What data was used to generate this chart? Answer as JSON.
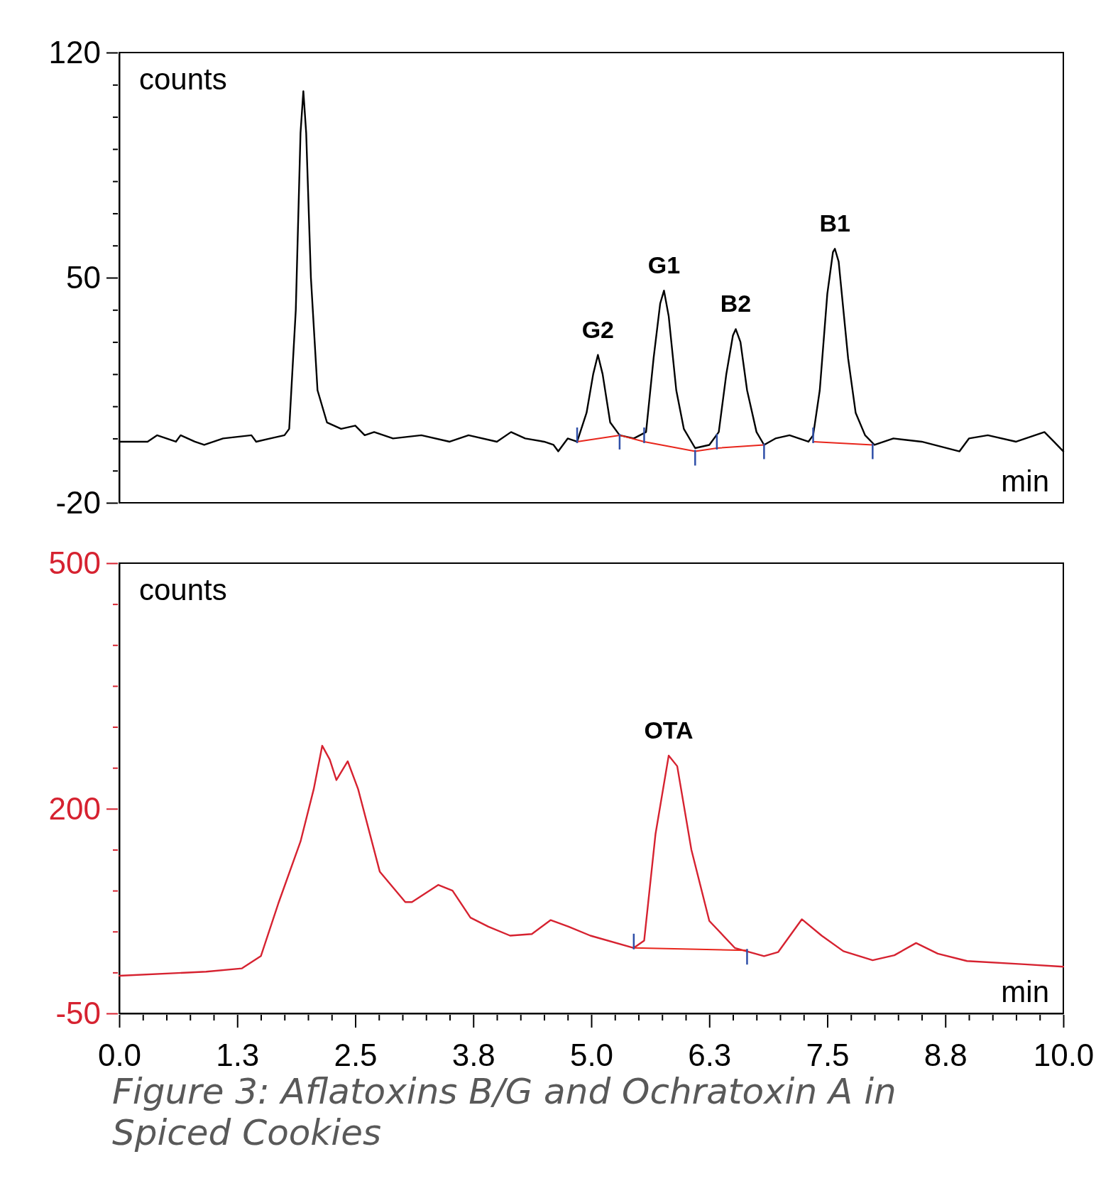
{
  "chart_data": [
    {
      "type": "line",
      "ylabel": "counts",
      "xlabel": "min",
      "xlim": [
        0,
        10
      ],
      "ylim": [
        -20,
        120
      ],
      "tick_labels": "y",
      "grid": false,
      "yticks": [
        -20,
        {
          "value": -10,
          "label": null
        },
        {
          "value": 0,
          "label": null
        },
        {
          "value": 10,
          "label": null
        },
        {
          "value": 20,
          "label": null
        },
        {
          "value": 30,
          "label": null
        },
        {
          "value": 40,
          "label": null
        },
        50,
        {
          "value": 60,
          "label": null
        },
        {
          "value": 70,
          "label": null
        },
        {
          "value": 80,
          "label": null
        },
        {
          "value": 90,
          "label": null
        },
        {
          "value": 100,
          "label": null
        },
        {
          "value": 110,
          "label": null
        },
        120
      ],
      "series": [
        {
          "color": "#000000",
          "x": [
            0,
            0.3,
            0.4,
            0.6,
            0.65,
            0.8,
            0.9,
            1.1,
            1.4,
            1.45,
            1.6,
            1.75,
            1.8,
            1.87,
            1.92,
            1.95,
            1.98,
            2.03,
            2.1,
            2.2,
            2.35,
            2.5,
            2.6,
            2.7,
            2.9,
            3.2,
            3.5,
            3.7,
            4.0,
            4.15,
            4.3,
            4.5,
            4.6,
            4.65,
            4.75,
            4.85,
            4.95,
            5.02,
            5.07,
            5.12,
            5.2,
            5.3,
            5.45,
            5.58,
            5.66,
            5.73,
            5.77,
            5.82,
            5.9,
            5.98,
            6.1,
            6.25,
            6.35,
            6.43,
            6.5,
            6.53,
            6.58,
            6.65,
            6.75,
            6.83,
            6.95,
            7.1,
            7.3,
            7.35,
            7.42,
            7.5,
            7.56,
            7.58,
            7.62,
            7.72,
            7.8,
            7.9,
            8.0,
            8.2,
            8.5,
            8.9,
            9.0,
            9.2,
            9.5,
            9.7,
            9.8,
            9.9,
            10
          ],
          "values": [
            -1,
            -1,
            1,
            -1,
            1,
            -1,
            -2,
            0,
            1,
            -1,
            0,
            1,
            3,
            40,
            95,
            108,
            95,
            50,
            15,
            5,
            3,
            4,
            1,
            2,
            0,
            1,
            -1,
            1,
            -1,
            2,
            0,
            -1,
            -2,
            -4,
            0,
            -1,
            8,
            20,
            26,
            20,
            5,
            1,
            0,
            2,
            25,
            42,
            46,
            38,
            15,
            3,
            -3,
            -2,
            2,
            20,
            32,
            34,
            30,
            15,
            2,
            -2,
            0,
            1,
            -1,
            1,
            15,
            45,
            58,
            59,
            55,
            25,
            8,
            1,
            -2,
            0,
            -1,
            -4,
            0,
            1,
            -1,
            1,
            2,
            -1,
            -4
          ]
        },
        {
          "color": "#e8261c",
          "x": [
            4.85,
            5.3,
            5.56,
            6.1,
            6.33,
            6.83,
            7.1,
            7.35,
            7.98
          ],
          "values": [
            -1,
            1,
            -1,
            -4,
            -3,
            -2,
            null,
            -1,
            -2
          ]
        }
      ],
      "annotations": [
        {
          "text": "G2",
          "x": 5.07,
          "y": 26
        },
        {
          "text": "G1",
          "x": 5.77,
          "y": 46
        },
        {
          "text": "B2",
          "x": 6.53,
          "y": 34
        },
        {
          "text": "B1",
          "x": 7.58,
          "y": 59
        }
      ]
    },
    {
      "type": "line",
      "ylabel": "counts",
      "xlabel": "min",
      "xlim": [
        0,
        10
      ],
      "ylim": [
        -50,
        500
      ],
      "grid": false,
      "yticks": [
        -50,
        {
          "value": 0,
          "label": null
        },
        {
          "value": 50,
          "label": null
        },
        {
          "value": 100,
          "label": null
        },
        {
          "value": 150,
          "label": null
        },
        200,
        {
          "value": 250,
          "label": null
        },
        {
          "value": 300,
          "label": null
        },
        {
          "value": 350,
          "label": null
        },
        {
          "value": 400,
          "label": null
        },
        {
          "value": 450,
          "label": null
        },
        500
      ],
      "xticks": [
        {
          "value": 0,
          "label": "0.0"
        },
        {
          "value": 0.25,
          "label": null
        },
        {
          "value": 0.5,
          "label": null
        },
        {
          "value": 0.75,
          "label": null
        },
        {
          "value": 1,
          "label": null
        },
        {
          "value": 1.25,
          "label": "1.3"
        },
        {
          "value": 1.5,
          "label": null
        },
        {
          "value": 1.75,
          "label": null
        },
        {
          "value": 2,
          "label": null
        },
        {
          "value": 2.25,
          "label": null
        },
        {
          "value": 2.5,
          "label": "2.5"
        },
        {
          "value": 2.75,
          "label": null
        },
        {
          "value": 3,
          "label": null
        },
        {
          "value": 3.25,
          "label": null
        },
        {
          "value": 3.5,
          "label": null
        },
        {
          "value": 3.75,
          "label": "3.8"
        },
        {
          "value": 4,
          "label": null
        },
        {
          "value": 4.25,
          "label": null
        },
        {
          "value": 4.5,
          "label": null
        },
        {
          "value": 4.75,
          "label": null
        },
        {
          "value": 5,
          "label": "5.0"
        },
        {
          "value": 5.25,
          "label": null
        },
        {
          "value": 5.5,
          "label": null
        },
        {
          "value": 5.75,
          "label": null
        },
        {
          "value": 6,
          "label": null
        },
        {
          "value": 6.25,
          "label": "6.3"
        },
        {
          "value": 6.5,
          "label": null
        },
        {
          "value": 6.75,
          "label": null
        },
        {
          "value": 7,
          "label": null
        },
        {
          "value": 7.25,
          "label": null
        },
        {
          "value": 7.5,
          "label": "7.5"
        },
        {
          "value": 7.75,
          "label": null
        },
        {
          "value": 8,
          "label": null
        },
        {
          "value": 8.25,
          "label": null
        },
        {
          "value": 8.5,
          "label": null
        },
        {
          "value": 8.75,
          "label": "8.8"
        },
        {
          "value": 9,
          "label": null
        },
        {
          "value": 9.25,
          "label": null
        },
        {
          "value": 9.5,
          "label": null
        },
        {
          "value": 9.75,
          "label": null
        },
        {
          "value": 10,
          "label": "10.0"
        }
      ],
      "series": [
        {
          "color": "#d62230",
          "x": [
            0,
            0.92,
            1.3,
            1.5,
            1.69,
            1.92,
            2.06,
            2.15,
            2.23,
            2.3,
            2.42,
            2.53,
            2.76,
            3.03,
            3.1,
            3.38,
            3.53,
            3.72,
            3.91,
            4.14,
            4.37,
            4.57,
            4.76,
            4.99,
            5.45,
            5.56,
            5.68,
            5.82,
            5.91,
            6.06,
            6.25,
            6.52,
            6.83,
            6.98,
            7.23,
            7.44,
            7.67,
            7.98,
            8.21,
            8.44,
            8.67,
            8.98,
            9.59,
            10
          ],
          "values": [
            -4,
            1,
            5,
            20,
            86,
            160,
            224,
            277,
            260,
            235,
            258,
            224,
            123,
            86,
            86,
            107,
            100,
            67,
            56,
            45,
            47,
            64,
            56,
            45,
            30,
            39,
            169,
            265,
            252,
            150,
            63,
            30,
            20,
            25,
            65,
            45,
            26,
            15,
            21,
            36,
            23,
            14,
            10,
            7
          ]
        },
        {
          "color": "#e8261c",
          "x": [
            5.45,
            6.65
          ],
          "values": [
            30,
            27
          ]
        }
      ],
      "annotations": [
        {
          "text": "OTA",
          "x": 5.82,
          "y": 265
        },
        "Figure 3: Aflatoxins B/G and Ochratoxin A in Spiced Cookies"
      ]
    }
  ]
}
